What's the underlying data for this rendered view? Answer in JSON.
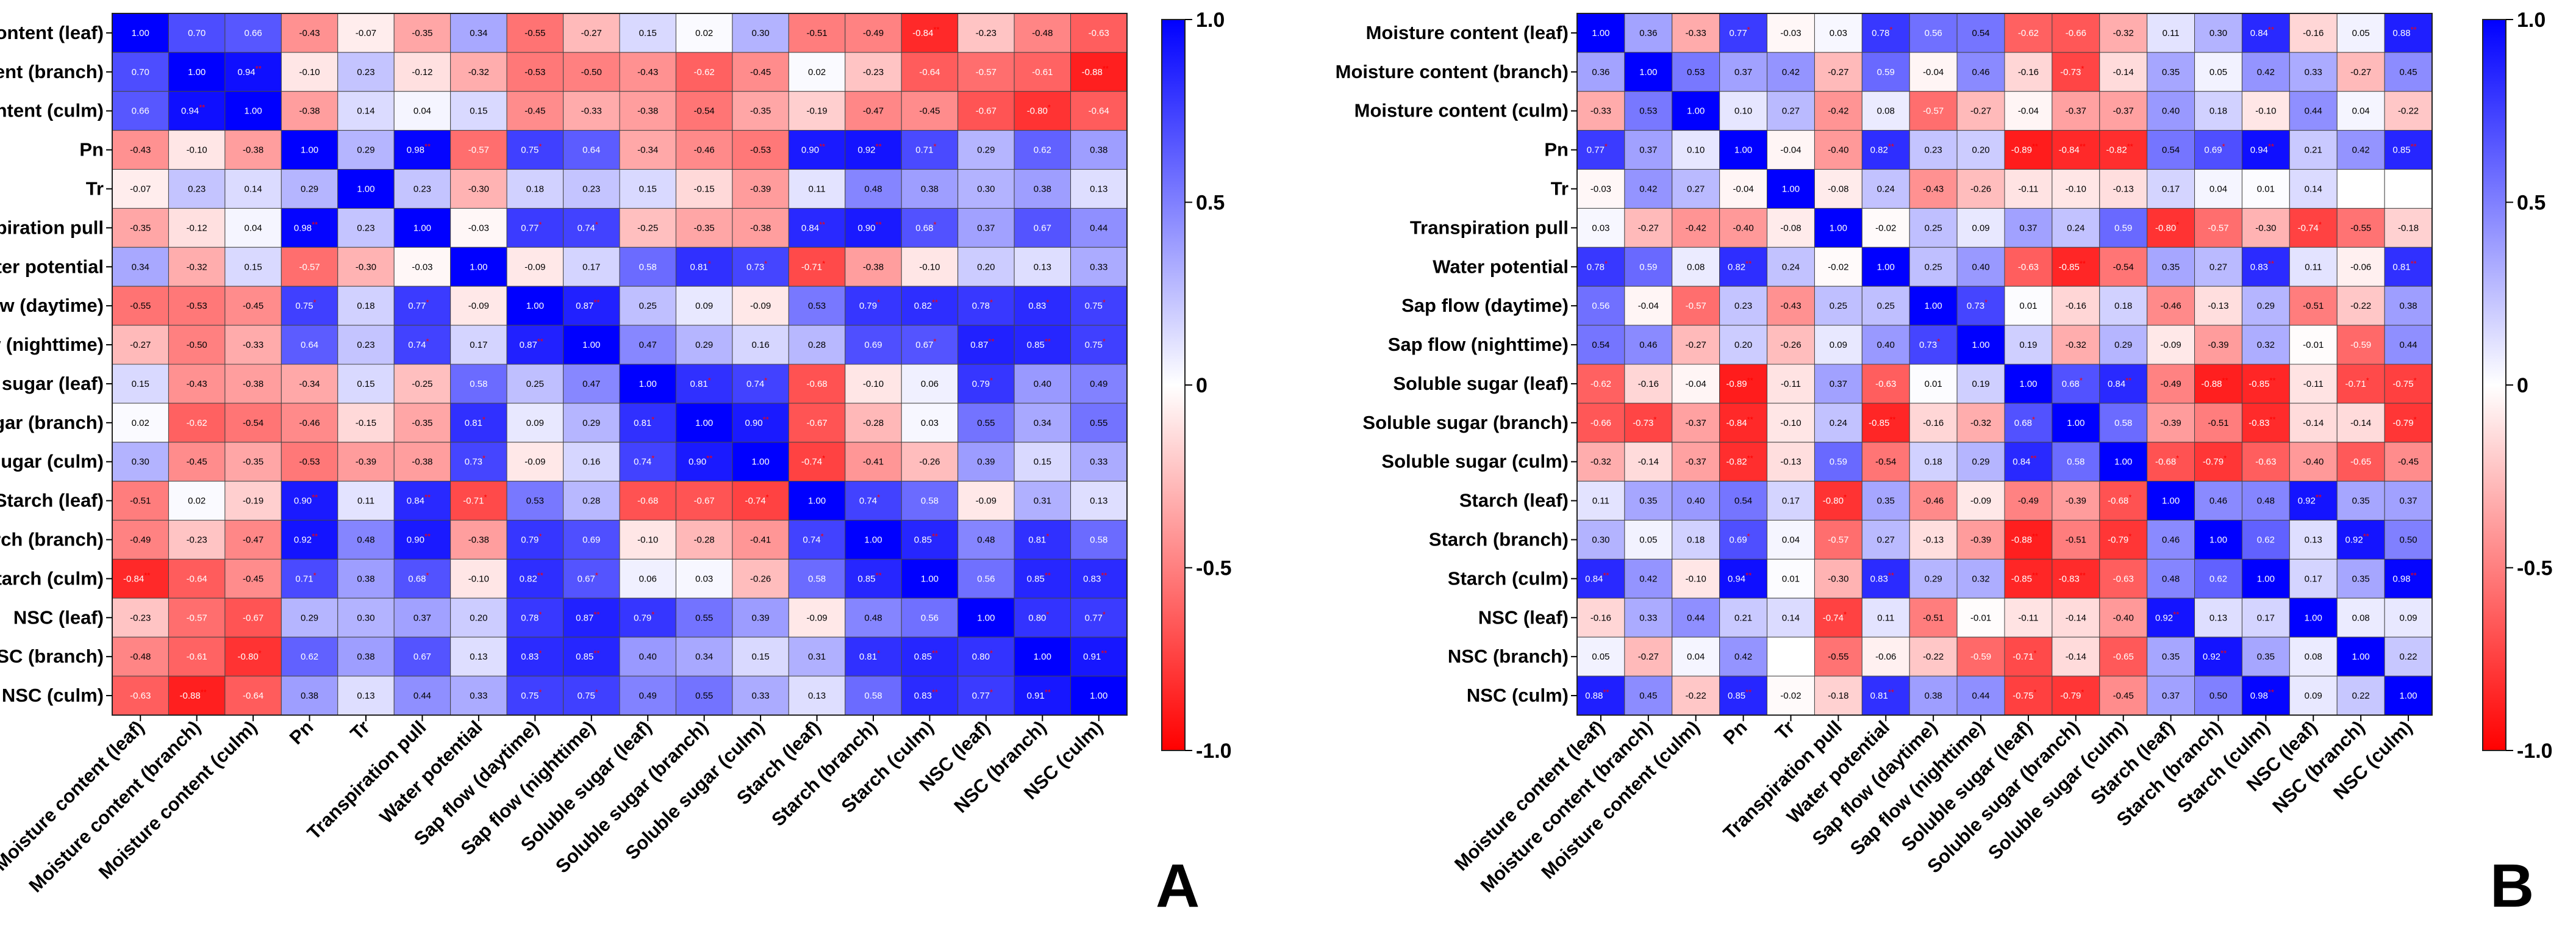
{
  "chart_data": [
    {
      "type": "heatmap",
      "panel": "A",
      "variables": [
        "Moisture content (leaf)",
        "Moisture content (branch)",
        "Moisture content (culm)",
        "Pn",
        "Tr",
        "Transpiration pull",
        "Water potential",
        "Sap flow (daytime)",
        "Sap flow (nighttime)",
        "Soluble sugar (leaf)",
        "Soluble sugar (branch)",
        "Soluble sugar (culm)",
        "Starch (leaf)",
        "Starch (branch)",
        "Starch (culm)",
        "NSC (leaf)",
        "NSC (branch)",
        "NSC (culm)"
      ],
      "zlim": [
        -1,
        1
      ],
      "colorbar_ticks": [
        "1.0",
        "0.5",
        "0",
        "-0.5",
        "-1.0"
      ],
      "values": [
        [
          "1.00",
          "0.70",
          "0.66",
          "-0.43",
          "-0.07",
          "-0.35",
          "0.34",
          "-0.55",
          "-0.27",
          "0.15",
          "0.02",
          "0.30",
          "-0.51",
          "-0.49",
          "-0.84**",
          "-0.23",
          "-0.48",
          "-0.63"
        ],
        [
          "0.70",
          "1.00",
          "0.94**",
          "-0.10",
          "0.23",
          "-0.12",
          "-0.32",
          "-0.53",
          "-0.50",
          "-0.43",
          "-0.62",
          "-0.45",
          "0.02",
          "-0.23",
          "-0.64",
          "-0.57",
          "-0.61",
          "-0.88**"
        ],
        [
          "0.66",
          "0.94**",
          "1.00",
          "-0.38",
          "0.14",
          "0.04",
          "0.15",
          "-0.45",
          "-0.33",
          "-0.38",
          "-0.54",
          "-0.35",
          "-0.19",
          "-0.47",
          "-0.45",
          "-0.67",
          "-0.80*",
          "-0.64"
        ],
        [
          "-0.43",
          "-0.10",
          "-0.38",
          "1.00",
          "0.29",
          "0.98**",
          "-0.57",
          "0.75*",
          "0.64",
          "-0.34",
          "-0.46",
          "-0.53",
          "0.90**",
          "0.92**",
          "0.71*",
          "0.29",
          "0.62",
          "0.38"
        ],
        [
          "-0.07",
          "0.23",
          "0.14",
          "0.29",
          "1.00",
          "0.23",
          "-0.30",
          "0.18",
          "0.23",
          "0.15",
          "-0.15",
          "-0.39",
          "0.11",
          "0.48",
          "0.38",
          "0.30",
          "0.38",
          "0.13"
        ],
        [
          "-0.35",
          "-0.12",
          "0.04",
          "0.98**",
          "0.23",
          "1.00",
          "-0.03",
          "0.77*",
          "0.74*",
          "-0.25",
          "-0.35",
          "-0.38",
          "0.84**",
          "0.90**",
          "0.68*",
          "0.37",
          "0.67",
          "0.44"
        ],
        [
          "0.34",
          "-0.32",
          "0.15",
          "-0.57",
          "-0.30",
          "-0.03",
          "1.00",
          "-0.09",
          "0.17",
          "0.58",
          "0.81*",
          "0.73*",
          "-0.71*",
          "-0.38",
          "-0.10",
          "0.20",
          "0.13",
          "0.33"
        ],
        [
          "-0.55",
          "-0.53",
          "-0.45",
          "0.75*",
          "0.18",
          "0.77*",
          "-0.09",
          "1.00",
          "0.87**",
          "0.25",
          "0.09",
          "-0.09",
          "0.53",
          "0.79*",
          "0.82**",
          "0.78*",
          "0.83*",
          "0.75*"
        ],
        [
          "-0.27",
          "-0.50",
          "-0.33",
          "0.64",
          "0.23",
          "0.74*",
          "0.17",
          "0.87**",
          "1.00",
          "0.47",
          "0.29",
          "0.16",
          "0.28",
          "0.69",
          "0.67*",
          "0.87**",
          "0.85**",
          "0.75*"
        ],
        [
          "0.15",
          "-0.43",
          "-0.38",
          "-0.34",
          "0.15",
          "-0.25",
          "0.58",
          "0.25",
          "0.47",
          "1.00",
          "0.81*",
          "0.74*",
          "-0.68",
          "-0.10",
          "0.06",
          "0.79*",
          "0.40",
          "0.49"
        ],
        [
          "0.02",
          "-0.62",
          "-0.54",
          "-0.46",
          "-0.15",
          "-0.35",
          "0.81*",
          "0.09",
          "0.29",
          "0.81*",
          "1.00",
          "0.90**",
          "-0.67",
          "-0.28",
          "0.03",
          "0.55",
          "0.34",
          "0.55"
        ],
        [
          "0.30",
          "-0.45",
          "-0.35",
          "-0.53",
          "-0.39",
          "-0.38",
          "0.73*",
          "-0.09",
          "0.16",
          "0.74*",
          "0.90**",
          "1.00",
          "-0.74*",
          "-0.41",
          "-0.26",
          "0.39",
          "0.15",
          "0.33"
        ],
        [
          "-0.51",
          "0.02",
          "-0.19",
          "0.90**",
          "0.11",
          "0.84**",
          "-0.71*",
          "0.53",
          "0.28",
          "-0.68",
          "-0.67",
          "-0.74*",
          "1.00",
          "0.74*",
          "0.58",
          "-0.09",
          "0.31",
          "0.13"
        ],
        [
          "-0.49",
          "-0.23",
          "-0.47",
          "0.92**",
          "0.48",
          "0.90**",
          "-0.38",
          "0.79*",
          "0.69",
          "-0.10",
          "-0.28",
          "-0.41",
          "0.74*",
          "1.00",
          "0.85**",
          "0.48",
          "0.81*",
          "0.58"
        ],
        [
          "-0.84**",
          "-0.64",
          "-0.45",
          "0.71*",
          "0.38",
          "0.68*",
          "-0.10",
          "0.82**",
          "0.67*",
          "0.06",
          "0.03",
          "-0.26",
          "0.58",
          "0.85**",
          "1.00",
          "0.56",
          "0.85**",
          "0.83**"
        ],
        [
          "-0.23",
          "-0.57",
          "-0.67",
          "0.29",
          "0.30",
          "0.37",
          "0.20",
          "0.78*",
          "0.87**",
          "0.79*",
          "0.55",
          "0.39",
          "-0.09",
          "0.48",
          "0.56",
          "1.00",
          "0.80*",
          "0.77*"
        ],
        [
          "-0.48",
          "-0.61",
          "-0.80*",
          "0.62",
          "0.38",
          "0.67",
          "0.13",
          "0.83*",
          "0.85**",
          "0.40",
          "0.34",
          "0.15",
          "0.31",
          "0.81*",
          "0.85**",
          "0.80*",
          "1.00",
          "0.91**"
        ],
        [
          "-0.63",
          "-0.88**",
          "-0.64",
          "0.38",
          "0.13",
          "0.44",
          "0.33",
          "0.75*",
          "0.75*",
          "0.49",
          "0.55",
          "0.33",
          "0.13",
          "0.58",
          "0.83**",
          "0.77*",
          "0.91**",
          "1.00"
        ]
      ]
    },
    {
      "type": "heatmap",
      "panel": "B",
      "variables": [
        "Moisture content (leaf)",
        "Moisture content (branch)",
        "Moisture content (culm)",
        "Pn",
        "Tr",
        "Transpiration pull",
        "Water potential",
        "Sap flow (daytime)",
        "Sap flow (nighttime)",
        "Soluble sugar (leaf)",
        "Soluble sugar (branch)",
        "Soluble sugar (culm)",
        "Starch (leaf)",
        "Starch (branch)",
        "Starch (culm)",
        "NSC (leaf)",
        "NSC (branch)",
        "NSC (culm)"
      ],
      "zlim": [
        -1,
        1
      ],
      "colorbar_ticks": [
        "1.0",
        "0.5",
        "0",
        "-0.5",
        "-1.0"
      ],
      "values": [
        [
          "1.00",
          "0.36",
          "-0.33",
          "0.77*",
          "-0.03",
          "0.03",
          "0.78*",
          "0.56",
          "0.54",
          "-0.62",
          "-0.66",
          "-0.32",
          "0.11",
          "0.30",
          "0.84**",
          "-0.16",
          "0.05",
          "0.88**"
        ],
        [
          "0.36",
          "1.00",
          "0.53",
          "0.37",
          "0.42",
          "-0.27",
          "0.59",
          "-0.04",
          "0.46",
          "-0.16",
          "-0.73*",
          "-0.14",
          "0.35",
          "0.05",
          "0.42",
          "0.33",
          "-0.27",
          "0.45"
        ],
        [
          "-0.33",
          "0.53",
          "1.00",
          "0.10",
          "0.27",
          "-0.42",
          "0.08",
          "-0.57",
          "-0.27",
          "-0.04",
          "-0.37",
          "-0.37",
          "0.40",
          "0.18",
          "-0.10",
          "0.44",
          "0.04",
          "-0.22"
        ],
        [
          "0.77*",
          "0.37",
          "0.10",
          "1.00",
          "-0.04",
          "-0.40",
          "0.82**",
          "0.23",
          "0.20",
          "-0.89**",
          "-0.84**",
          "-0.82**",
          "0.54",
          "0.69*",
          "0.94**",
          "0.21",
          "0.42",
          "0.85**"
        ],
        [
          "-0.03",
          "0.42",
          "0.27",
          "-0.04",
          "1.00",
          "-0.08",
          "0.24",
          "-0.43",
          "-0.26",
          "-0.11",
          "-0.10",
          "-0.13",
          "0.17",
          "0.04",
          "0.01",
          "0.14",
          "",
          ""
        ],
        [
          "0.03",
          "-0.27",
          "-0.42",
          "-0.40",
          "-0.08",
          "1.00",
          "-0.02",
          "0.25",
          "0.09",
          "0.37",
          "0.24",
          "0.59",
          "-0.80*",
          "-0.57",
          "-0.30",
          "-0.74*",
          "-0.55",
          "-0.18"
        ],
        [
          "0.78*",
          "0.59",
          "0.08",
          "0.82**",
          "0.24",
          "-0.02",
          "1.00",
          "0.25",
          "0.40",
          "-0.63",
          "-0.85**",
          "-0.54",
          "0.35",
          "0.27",
          "0.83**",
          "0.11",
          "-0.06",
          "0.81**"
        ],
        [
          "0.56",
          "-0.04",
          "-0.57",
          "0.23",
          "-0.43",
          "0.25",
          "0.25",
          "1.00",
          "0.73*",
          "0.01",
          "-0.16",
          "0.18",
          "-0.46",
          "-0.13",
          "0.29",
          "-0.51",
          "-0.22",
          "0.38"
        ],
        [
          "0.54",
          "0.46",
          "-0.27",
          "0.20",
          "-0.26",
          "0.09",
          "0.40",
          "0.73*",
          "1.00",
          "0.19",
          "-0.32",
          "0.29",
          "-0.09",
          "-0.39",
          "0.32",
          "-0.01",
          "-0.59",
          "0.44"
        ],
        [
          "-0.62",
          "-0.16",
          "-0.04",
          "-0.89**",
          "-0.11",
          "0.37",
          "-0.63",
          "0.01",
          "0.19",
          "1.00",
          "0.68*",
          "0.84**",
          "-0.49",
          "-0.88**",
          "-0.85**",
          "-0.11",
          "-0.71*",
          "-0.75*"
        ],
        [
          "-0.66",
          "-0.73*",
          "-0.37",
          "-0.84**",
          "-0.10",
          "0.24",
          "-0.85**",
          "-0.16",
          "-0.32",
          "0.68*",
          "1.00",
          "0.58",
          "-0.39",
          "-0.51",
          "-0.83**",
          "-0.14",
          "-0.14",
          "-0.79*"
        ],
        [
          "-0.32",
          "-0.14",
          "-0.37",
          "-0.82**",
          "-0.13",
          "0.59",
          "-0.54",
          "0.18",
          "0.29",
          "0.84**",
          "0.58",
          "1.00",
          "-0.68*",
          "-0.79*",
          "-0.63",
          "-0.40",
          "-0.65",
          "-0.45"
        ],
        [
          "0.11",
          "0.35",
          "0.40",
          "0.54",
          "0.17",
          "-0.80*",
          "0.35",
          "-0.46",
          "-0.09",
          "-0.49",
          "-0.39",
          "-0.68*",
          "1.00",
          "0.46",
          "0.48",
          "0.92**",
          "0.35",
          "0.37"
        ],
        [
          "0.30",
          "0.05",
          "0.18",
          "0.69*",
          "0.04",
          "-0.57",
          "0.27",
          "-0.13",
          "-0.39",
          "-0.88**",
          "-0.51",
          "-0.79*",
          "0.46",
          "1.00",
          "0.62",
          "0.13",
          "0.92**",
          "0.50"
        ],
        [
          "0.84**",
          "0.42",
          "-0.10",
          "0.94**",
          "0.01",
          "-0.30",
          "0.83**",
          "0.29",
          "0.32",
          "-0.85**",
          "-0.83**",
          "-0.63",
          "0.48",
          "0.62",
          "1.00",
          "0.17",
          "0.35",
          "0.98**"
        ],
        [
          "-0.16",
          "0.33",
          "0.44",
          "0.21",
          "0.14",
          "-0.74*",
          "0.11",
          "-0.51",
          "-0.01",
          "-0.11",
          "-0.14",
          "-0.40",
          "0.92**",
          "0.13",
          "0.17",
          "1.00",
          "0.08",
          "0.09"
        ],
        [
          "0.05",
          "-0.27",
          "0.04",
          "0.42",
          "",
          "-0.55",
          "-0.06",
          "-0.22",
          "-0.59",
          "-0.71*",
          "-0.14",
          "-0.65",
          "0.35",
          "0.92**",
          "0.35",
          "0.08",
          "1.00",
          "0.22"
        ],
        [
          "0.88**",
          "0.45",
          "-0.22",
          "0.85**",
          "-0.02",
          "-0.18",
          "0.81**",
          "0.38",
          "0.44",
          "-0.75*",
          "-0.79*",
          "-0.45",
          "0.37",
          "0.50",
          "0.98**",
          "0.09",
          "0.22",
          "1.00"
        ]
      ]
    }
  ],
  "panel_letters": [
    "A",
    "B"
  ],
  "colors": {
    "positive": "#0000ff",
    "neutral": "#ffffff",
    "negative": "#ff0000",
    "significance_mark": "#ff0000"
  }
}
